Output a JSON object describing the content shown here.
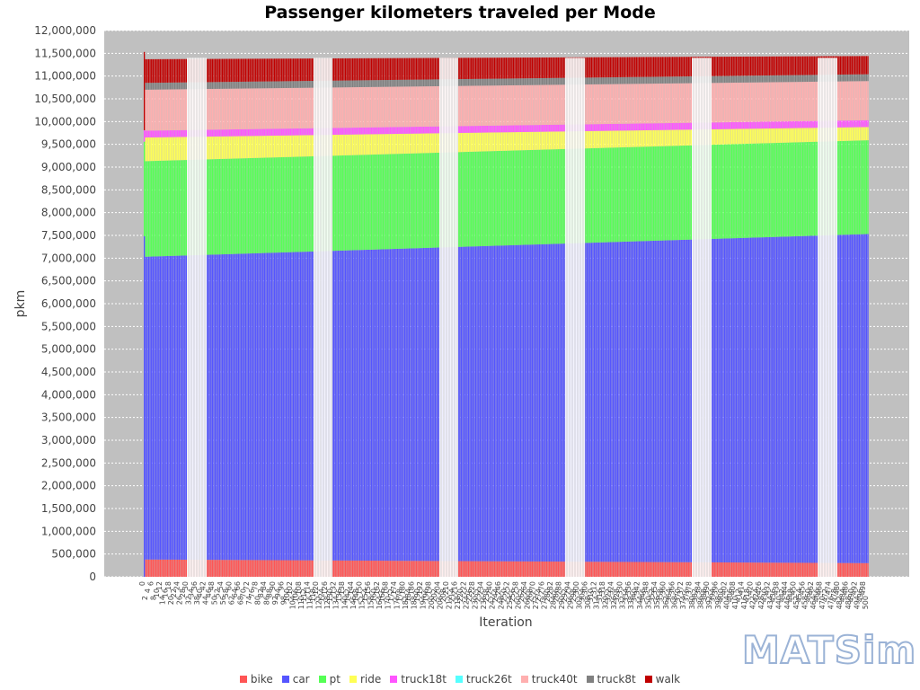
{
  "chart_data": {
    "type": "bar",
    "stacked": true,
    "title": "Passenger kilometers traveled per Mode",
    "xlabel": "Iteration",
    "ylabel": "pkm",
    "ylim": [
      0,
      12000000
    ],
    "y_ticks": [
      0,
      500000,
      1000000,
      1500000,
      2000000,
      2500000,
      3000000,
      3500000,
      4000000,
      4500000,
      5000000,
      5500000,
      6000000,
      6500000,
      7000000,
      7500000,
      8000000,
      8500000,
      9000000,
      9500000,
      10000000,
      10500000,
      11000000,
      11500000,
      12000000
    ],
    "y_tick_labels": [
      "0",
      "500,000",
      "1,000,000",
      "1,500,000",
      "2,000,000",
      "2,500,000",
      "3,000,000",
      "3,500,000",
      "4,000,000",
      "4,500,000",
      "5,000,000",
      "5,500,000",
      "6,000,000",
      "6,500,000",
      "7,000,000",
      "7,500,000",
      "8,000,000",
      "8,500,000",
      "9,000,000",
      "9,500,000",
      "10,000,000",
      "10,500,000",
      "11,000,000",
      "11,500,000",
      "12,000,000"
    ],
    "grid": true,
    "legend_position": "bottom",
    "x_range": [
      0,
      500
    ],
    "x_step": 1,
    "gap_ranges": [
      [
        60,
        73
      ],
      [
        233,
        245
      ],
      [
        407,
        420
      ],
      [
        582,
        594
      ],
      [
        755,
        768
      ],
      [
        929,
        942
      ]
    ],
    "gap_note_unused": "",
    "initial_value": {
      "bike": 0,
      "car": 7480000,
      "pt": 2080000,
      "ride": 0,
      "truck18t": 250000,
      "truck26t": 0,
      "truck40t": 0,
      "truck8t": 0,
      "walk": 1720000
    },
    "series": [
      {
        "name": "bike",
        "color": "#ff5555",
        "start": 380000,
        "end": 300000
      },
      {
        "name": "car",
        "color": "#5555ff",
        "start": 6650000,
        "end": 7230000
      },
      {
        "name": "pt",
        "color": "#55ff55",
        "start": 2100000,
        "end": 2060000
      },
      {
        "name": "ride",
        "color": "#ffff55",
        "start": 520000,
        "end": 290000
      },
      {
        "name": "truck18t",
        "color": "#ff55ff",
        "start": 150000,
        "end": 150000
      },
      {
        "name": "truck26t",
        "color": "#55ffff",
        "start": 0,
        "end": 0
      },
      {
        "name": "truck40t",
        "color": "#ffafaf",
        "start": 900000,
        "end": 860000
      },
      {
        "name": "truck8t",
        "color": "#808080",
        "start": 150000,
        "end": 150000
      },
      {
        "name": "walk",
        "color": "#c00000",
        "start": 520000,
        "end": 400000
      }
    ]
  },
  "legend": [
    {
      "label": "bike",
      "color": "#ff5555"
    },
    {
      "label": "car",
      "color": "#5555ff"
    },
    {
      "label": "pt",
      "color": "#55ff55"
    },
    {
      "label": "ride",
      "color": "#ffff55"
    },
    {
      "label": "truck18t",
      "color": "#ff55ff"
    },
    {
      "label": "truck26t",
      "color": "#55ffff"
    },
    {
      "label": "truck40t",
      "color": "#ffafaf"
    },
    {
      "label": "truck8t",
      "color": "#808080"
    },
    {
      "label": "walk",
      "color": "#c00000"
    }
  ],
  "logo_text": "MATSim",
  "colors": {
    "plot_bg": "#c0c0c0",
    "grid": "#ffffff"
  }
}
